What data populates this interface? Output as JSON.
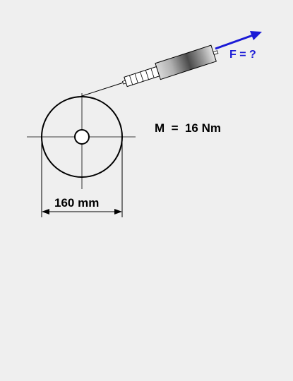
{
  "diagram": {
    "force_label": "F = ?",
    "moment_label": "M  =  16 Nm",
    "dimension_label": "160 mm"
  },
  "colors": {
    "background": "#efefef",
    "line": "#000000",
    "force_arrow": "#1a1ad6",
    "force_text": "#1a1ad6"
  }
}
